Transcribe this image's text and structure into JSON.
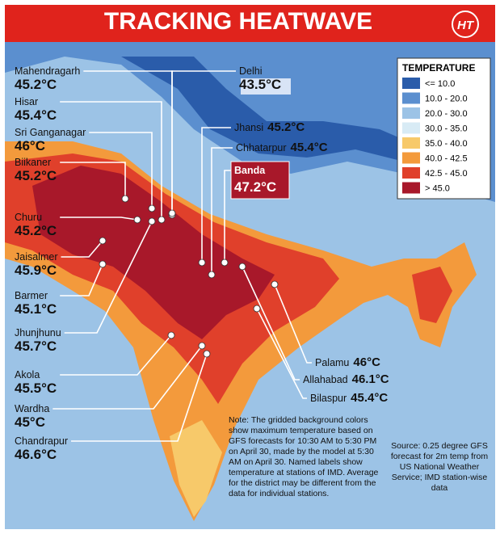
{
  "header": {
    "title": "TRACKING HEATWAVE",
    "logo": "HT"
  },
  "legend": {
    "title": "TEMPERATURE",
    "items": [
      {
        "label": "<= 10.0",
        "color": "#2a5caa"
      },
      {
        "label": "10.0 - 20.0",
        "color": "#5b8fcf"
      },
      {
        "label": "20.0 - 30.0",
        "color": "#9cc3e6"
      },
      {
        "label": "30.0 - 35.0",
        "color": "#d8ebf5"
      },
      {
        "label": "35.0 - 40.0",
        "color": "#f7c96a"
      },
      {
        "label": "40.0 - 42.5",
        "color": "#f39a3c"
      },
      {
        "label": "42.5 - 45.0",
        "color": "#e0402b"
      },
      {
        "label": "> 45.0",
        "color": "#a8182a"
      }
    ]
  },
  "stations": [
    {
      "name": "Mahendragarh",
      "temp": "45.2°C"
    },
    {
      "name": "Hisar",
      "temp": "45.4°C"
    },
    {
      "name": "Sri Ganganagar",
      "temp": "46°C"
    },
    {
      "name": "Biikaner",
      "temp": "45.2°C"
    },
    {
      "name": "Churu",
      "temp": "45.2°C"
    },
    {
      "name": "Jaisalmer",
      "temp": "45.9°C"
    },
    {
      "name": "Barmer",
      "temp": "45.1°C"
    },
    {
      "name": "Jhunjhunu",
      "temp": "45.7°C"
    },
    {
      "name": "Akola",
      "temp": "45.5°C"
    },
    {
      "name": "Wardha",
      "temp": "45°C"
    },
    {
      "name": "Chandrapur",
      "temp": "46.6°C"
    },
    {
      "name": "Delhi",
      "temp": "43.5°C"
    },
    {
      "name": "Jhansi",
      "temp": "45.2°C"
    },
    {
      "name": "Chhatarpur",
      "temp": "45.4°C"
    },
    {
      "name": "Banda",
      "temp": "47.2°C"
    },
    {
      "name": "Palamu",
      "temp": "46°C"
    },
    {
      "name": "Allahabad",
      "temp": "46.1°C"
    },
    {
      "name": "Bilaspur",
      "temp": "45.4°C"
    }
  ],
  "note": "Note: The gridded background colors show maximum temperature based on GFS forecasts for 10:30 AM to 5:30 PM on April 30, made by the model at 5:30 AM on April 30. Named labels show temperature at stations of IMD. Average for the district may be different from the data for individual stations.",
  "source": "Source: 0.25 degree GFS forecast for 2m temp from US National Weather Service; IMD station-wise data"
}
